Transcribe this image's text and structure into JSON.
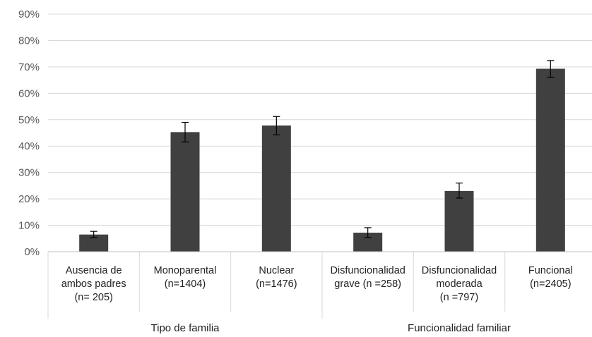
{
  "chart_data": {
    "type": "bar",
    "title": "",
    "xlabel": "",
    "ylabel": "",
    "ylim": [
      0,
      90
    ],
    "yticks": [
      "0%",
      "10%",
      "20%",
      "30%",
      "40%",
      "50%",
      "60%",
      "70%",
      "80%",
      "90%"
    ],
    "grid": true,
    "legend": "none",
    "bar_color": "#404040",
    "categories": [
      [
        "Ausencia de",
        "ambos padres",
        "(n= 205)"
      ],
      [
        "Monoparental",
        "(n=1404)"
      ],
      [
        "Nuclear",
        "(n=1476)"
      ],
      [
        "Disfuncionalidad",
        "grave (n =258)"
      ],
      [
        "Disfuncionalidad",
        "moderada",
        "(n =797)"
      ],
      [
        "Funcional",
        "(n=2405)"
      ]
    ],
    "values": [
      6.5,
      45.3,
      47.8,
      7.2,
      23.0,
      69.3
    ],
    "error_low": [
      5.4,
      41.6,
      44.3,
      5.4,
      20.3,
      66.1
    ],
    "error_high": [
      7.7,
      49.0,
      51.2,
      9.1,
      26.0,
      72.4
    ],
    "groups": [
      {
        "label": "Tipo de familia",
        "span": [
          0,
          2
        ]
      },
      {
        "label": "Funcionalidad familiar",
        "span": [
          3,
          5
        ]
      }
    ]
  }
}
